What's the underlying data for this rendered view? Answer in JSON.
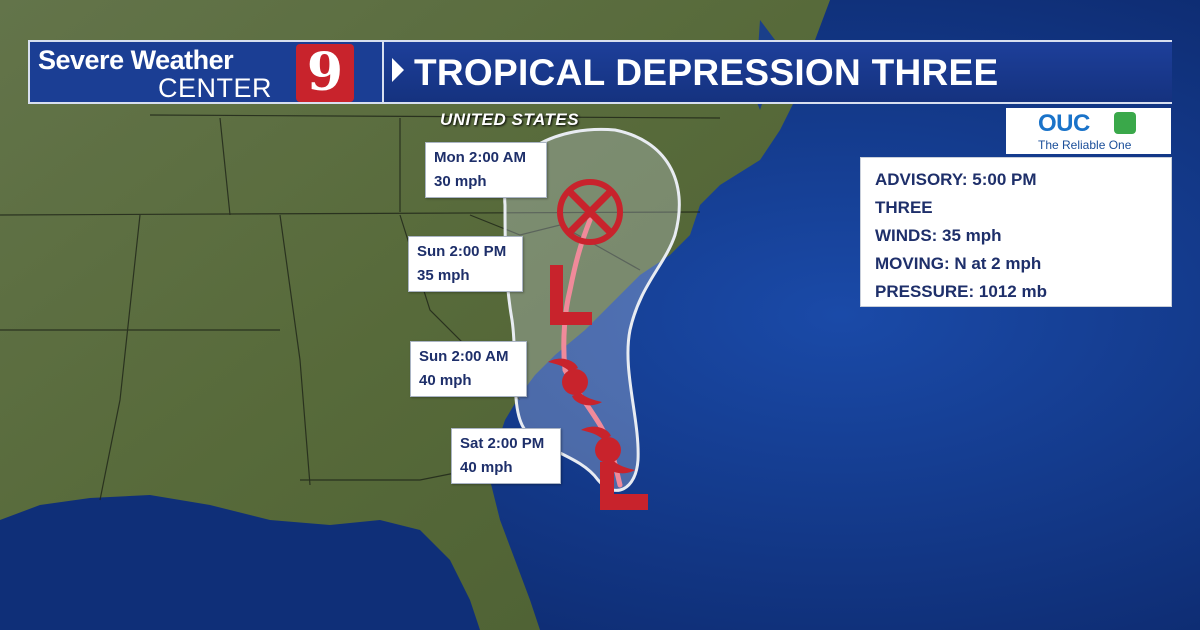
{
  "banner": {
    "logo_line1": "Severe Weather",
    "logo_line2": "CENTER",
    "logo_number": "9",
    "title": "TROPICAL DEPRESSION THREE"
  },
  "sponsor": {
    "name": "OUC",
    "tagline": "The Reliable One"
  },
  "map": {
    "region_label": "UNITED STATES",
    "colors": {
      "ocean": "#0d2a6a",
      "land": "#55673a",
      "track": "#f08a9a",
      "symbol": "#c8232c",
      "cone": "#e8ecf2"
    }
  },
  "advisory": {
    "time": "ADVISORY: 5:00 PM",
    "name": "THREE",
    "winds": "WINDS:  35 mph",
    "moving": "MOVING:  N at 2 mph",
    "pressure": "PRESSURE:  1012 mb"
  },
  "forecast_points": [
    {
      "time": "Mon 2:00 AM",
      "wind": "30 mph",
      "symbol": "remnant-x-icon"
    },
    {
      "time": "Sun 2:00 PM",
      "wind": "35 mph",
      "symbol": "low-l-icon"
    },
    {
      "time": "Sun 2:00 AM",
      "wind": "40 mph",
      "symbol": "storm-icon"
    },
    {
      "time": "Sat 2:00 PM",
      "wind": "40 mph",
      "symbol": "storm-icon"
    }
  ]
}
